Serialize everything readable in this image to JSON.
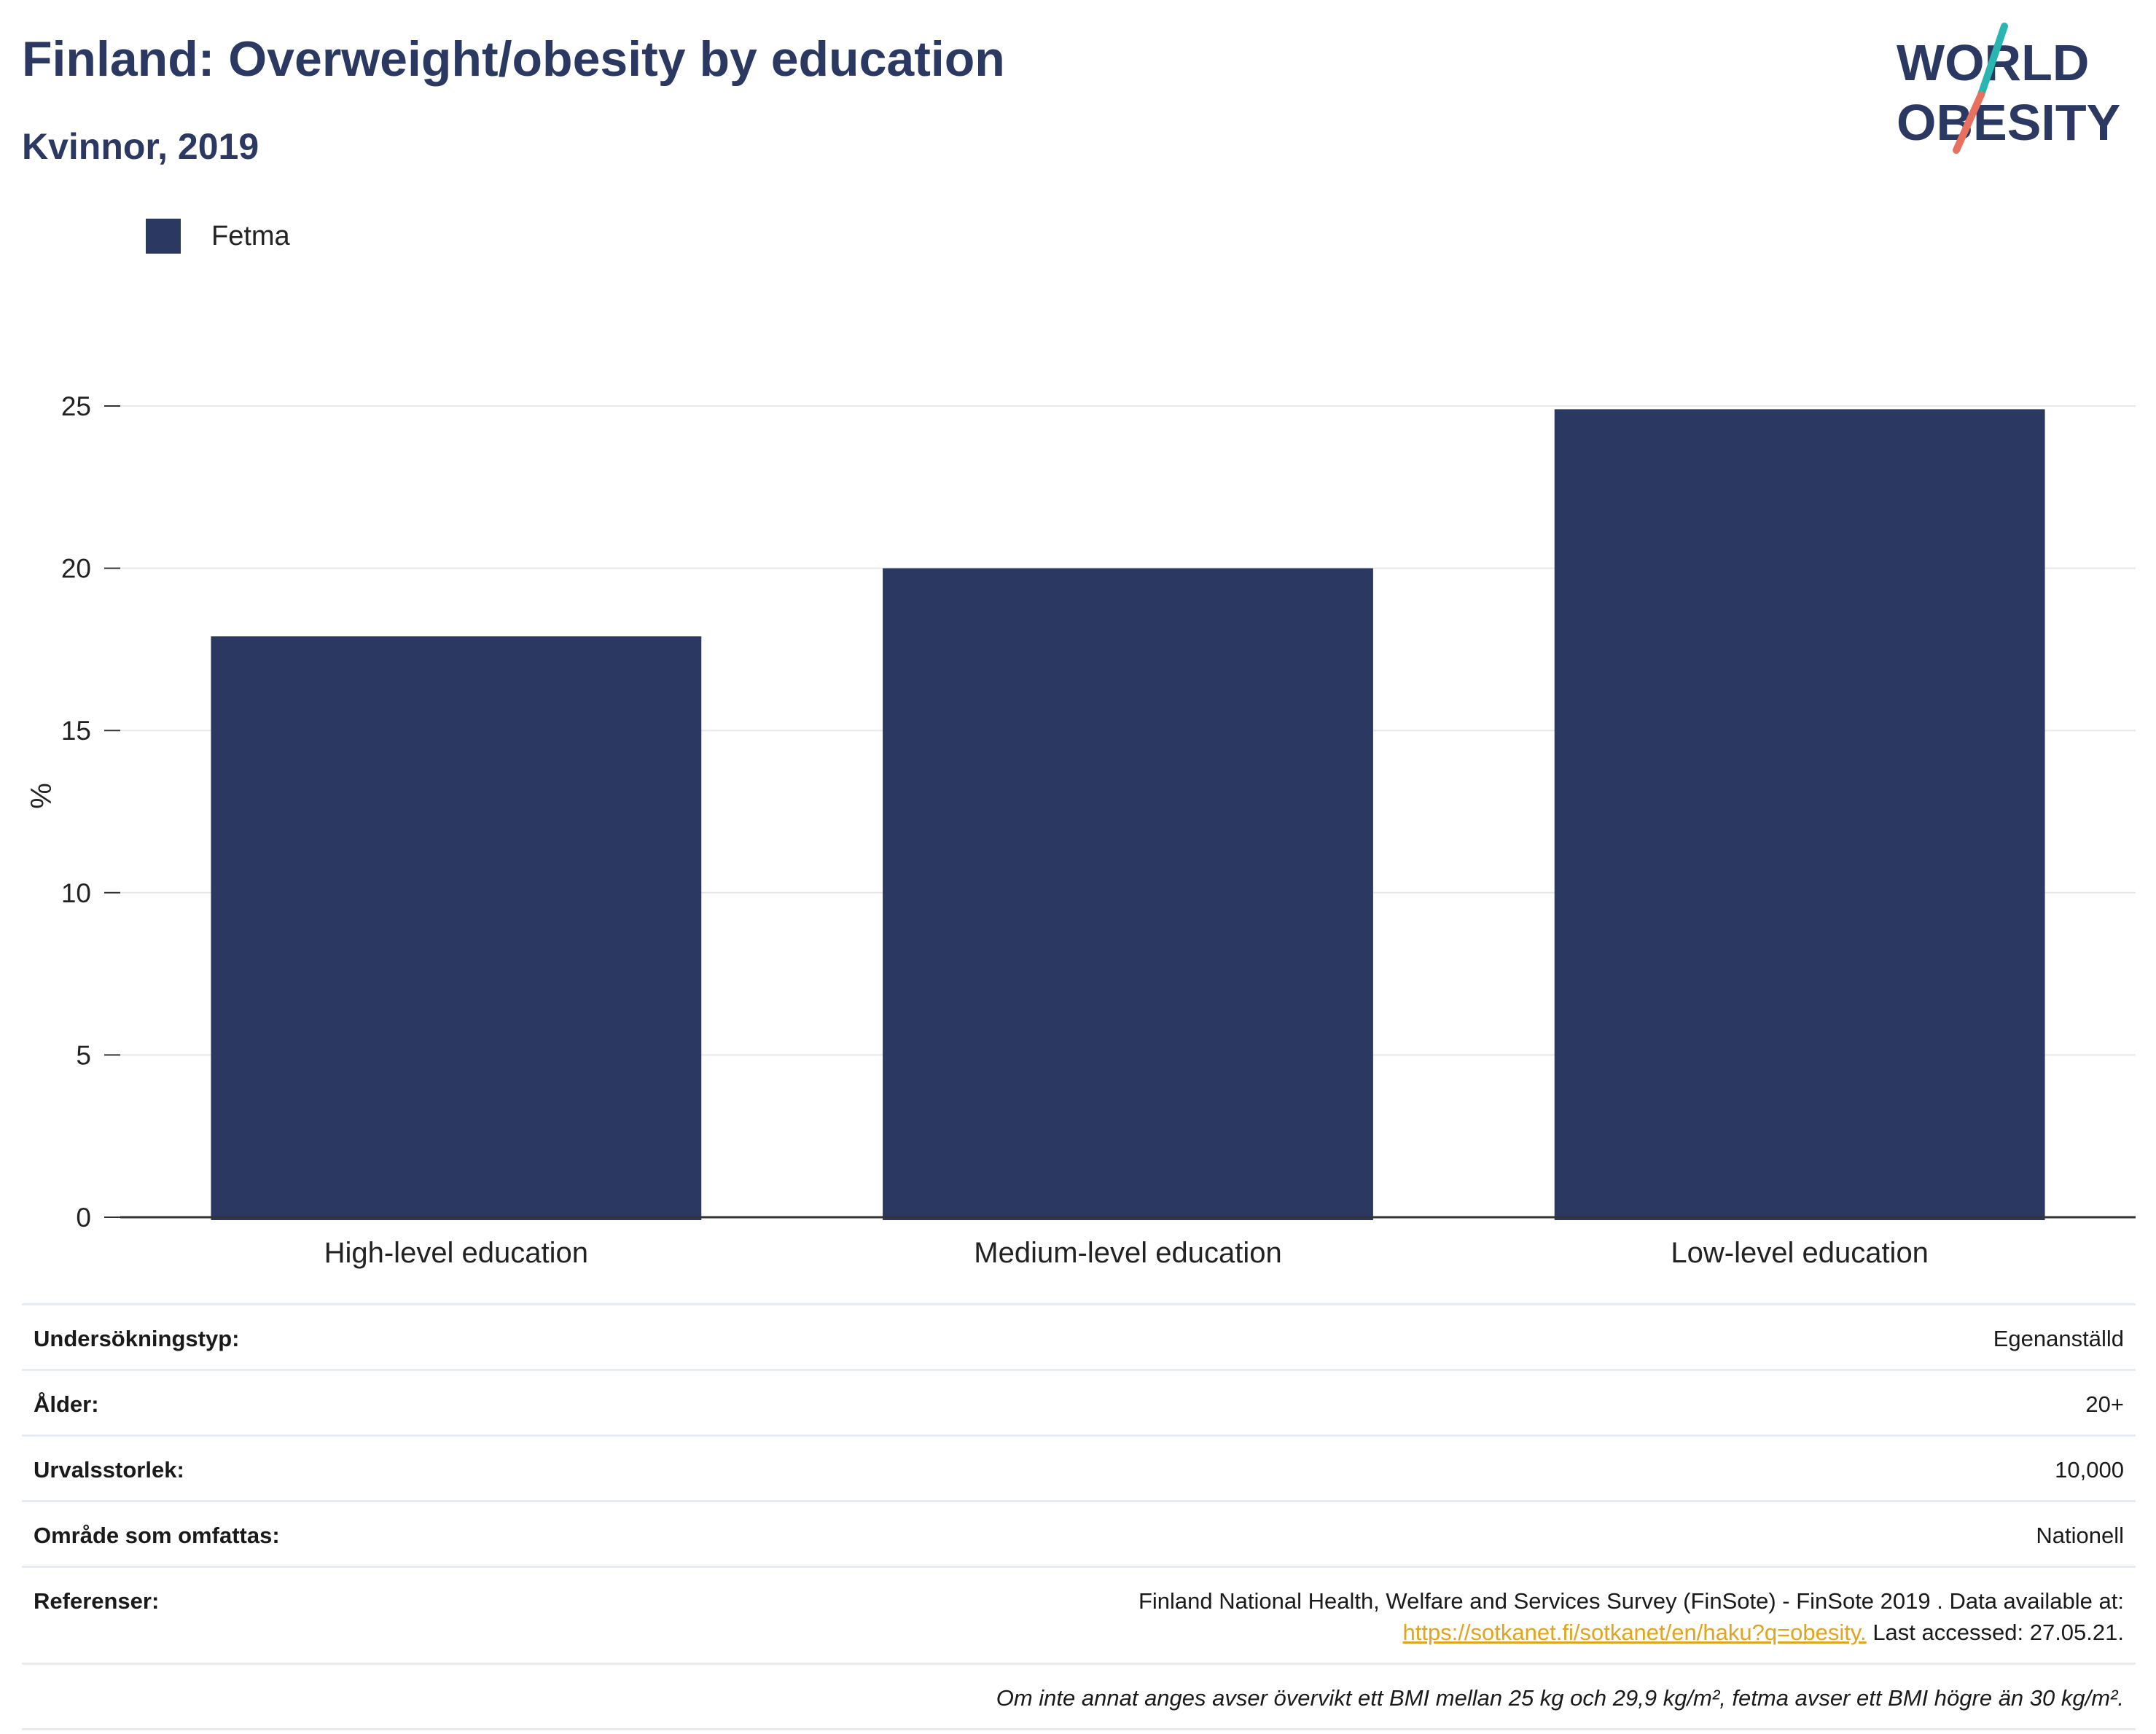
{
  "header": {
    "title": "Finland: Overweight/obesity by education",
    "subtitle": "Kvinnor, 2019"
  },
  "logo": {
    "line1": "WORLD",
    "line2": "OBESITY",
    "accent_teal": "#2bb5b0",
    "accent_coral": "#e8705f"
  },
  "chart_data": {
    "type": "bar",
    "categories": [
      "High-level education",
      "Medium-level education",
      "Low-level education"
    ],
    "series": [
      {
        "name": "Fetma",
        "values": [
          17.9,
          20.0,
          24.9
        ],
        "color": "#2b3862"
      }
    ],
    "ylabel": "%",
    "ylim": [
      0,
      25
    ],
    "yticks": [
      0,
      5,
      10,
      15,
      20,
      25
    ],
    "grid": true,
    "legend_position": "top-left"
  },
  "info": {
    "rows": [
      {
        "key": "Undersökningstyp:",
        "value": "Egenanställd"
      },
      {
        "key": "Ålder:",
        "value": "20+"
      },
      {
        "key": "Urvalsstorlek:",
        "value": "10,000"
      },
      {
        "key": "Område som omfattas:",
        "value": "Nationell"
      }
    ],
    "references_key": "Referenser:",
    "references_text": "Finland National Health, Welfare and Services Survey (FinSote) - FinSote 2019 . Data available at:",
    "references_link": "https://sotkanet.fi/sotkanet/en/haku?q=obesity.",
    "references_after": " Last accessed: 27.05.21.",
    "note": "Om inte annat anges avser övervikt ett BMI mellan 25 kg och 29,9 kg/m², fetma avser ett BMI högre än 30 kg/m²."
  }
}
